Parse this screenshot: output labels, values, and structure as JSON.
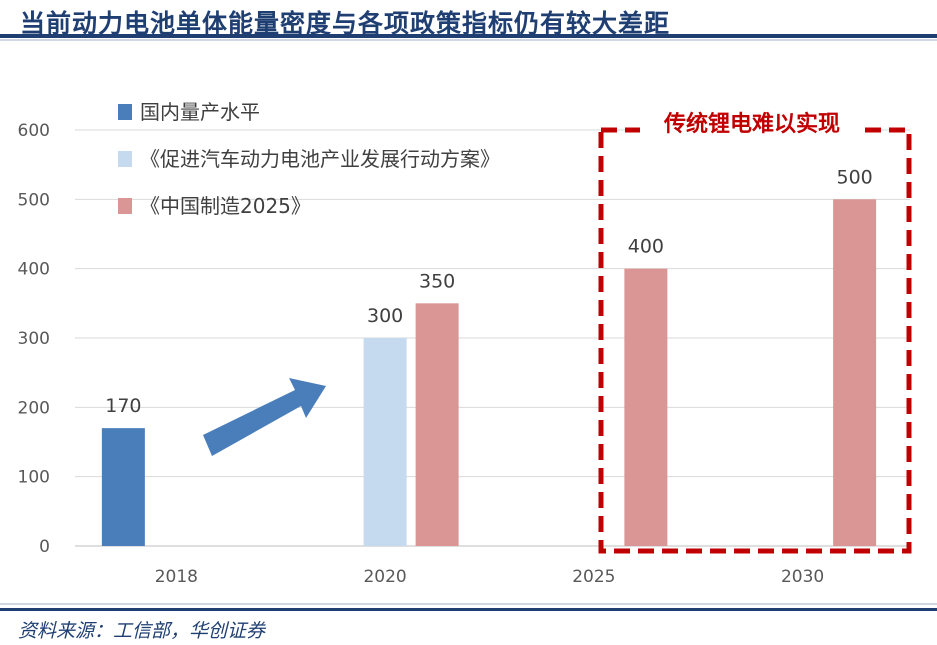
{
  "header": {
    "title": "当前动力电池单体能量密度与各项政策指标仍有较大差距"
  },
  "footer": {
    "source": "资料来源：工信部，华创证券"
  },
  "annotation": {
    "text": "传统锂电难以实现",
    "color": "#c00000"
  },
  "chart_data": {
    "type": "bar",
    "title": "当前动力电池单体能量密度与各项政策指标仍有较大差距",
    "categories": [
      "2018",
      "2020",
      "2025",
      "2030"
    ],
    "ylim": [
      0,
      600
    ],
    "yticks": [
      "0",
      "100",
      "200",
      "300",
      "400",
      "500",
      "600"
    ],
    "grid": true,
    "legend_position": "top-left",
    "series": [
      {
        "name": "国内量产水平",
        "color": "#4a7ebb",
        "values": [
          170,
          null,
          null,
          null
        ]
      },
      {
        "name": "《促进汽车动力电池产业发展行动方案》",
        "color": "#c5d9ef",
        "values": [
          null,
          300,
          null,
          null
        ]
      },
      {
        "name": "《中国制造2025》",
        "color": "#d99694",
        "values": [
          null,
          350,
          400,
          500
        ]
      }
    ]
  }
}
